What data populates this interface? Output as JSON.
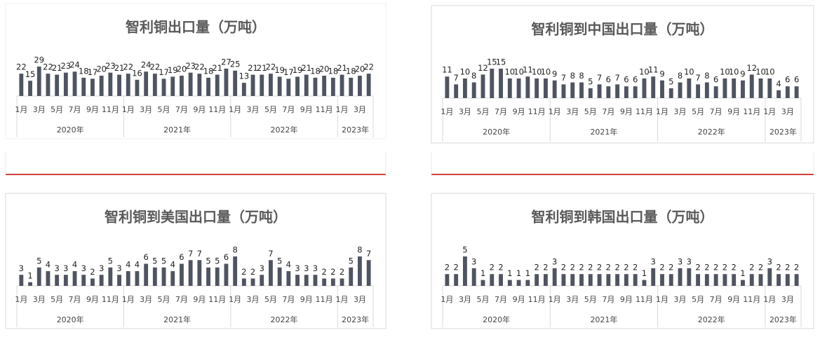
{
  "chart_data": [
    {
      "type": "bar",
      "title": "智利铜出口量（万吨）",
      "color": "#4f5461",
      "categories": [
        "1月",
        null,
        "3月",
        null,
        "5月",
        null,
        "7月",
        null,
        "9月",
        null,
        "11月",
        null,
        "1月",
        null,
        "3月",
        null,
        "5月",
        null,
        "7月",
        null,
        "9月",
        null,
        "11月",
        null,
        "1月",
        null,
        "3月",
        null,
        "5月",
        null,
        "7月",
        null,
        "9月",
        null,
        "11月",
        null,
        "1月",
        null,
        "3月",
        null
      ],
      "groups": [
        "2020年",
        "2021年",
        "2022年",
        "2023年"
      ],
      "values": [
        22,
        15,
        29,
        22,
        21,
        23,
        24,
        18,
        17,
        20,
        23,
        21,
        22,
        16,
        24,
        22,
        17,
        19,
        20,
        23,
        22,
        18,
        21,
        27,
        25,
        13,
        21,
        21,
        22,
        19,
        17,
        19,
        21,
        18,
        20,
        18,
        21,
        18,
        20,
        22
      ]
    },
    {
      "type": "bar",
      "title": "智利铜到中国出口量（万吨）",
      "color": "#4f5461",
      "categories": [
        "1月",
        null,
        "3月",
        null,
        "5月",
        null,
        "7月",
        null,
        "9月",
        null,
        "11月",
        null,
        "1月",
        null,
        "3月",
        null,
        "5月",
        null,
        "7月",
        null,
        "9月",
        null,
        "11月",
        null,
        "1月",
        null,
        "3月",
        null,
        "5月",
        null,
        "7月",
        null,
        "9月",
        null,
        "11月",
        null,
        "1月",
        null,
        "3月",
        null
      ],
      "groups": [
        "2020年",
        "2021年",
        "2022年",
        "2023年"
      ],
      "values": [
        11,
        7,
        10,
        8,
        12,
        15,
        15,
        10,
        10,
        11,
        10,
        10,
        9,
        7,
        8,
        8,
        5,
        7,
        6,
        7,
        6,
        6,
        10,
        11,
        9,
        5,
        8,
        10,
        7,
        8,
        6,
        10,
        10,
        9,
        12,
        10,
        10,
        4,
        6,
        6
      ]
    },
    {
      "type": "bar",
      "title": "智利铜到美国出口量（万吨）",
      "color": "#4f5461",
      "categories": [
        "1月",
        null,
        "3月",
        null,
        "5月",
        null,
        "7月",
        null,
        "9月",
        null,
        "11月",
        null,
        "1月",
        null,
        "3月",
        null,
        "5月",
        null,
        "7月",
        null,
        "9月",
        null,
        "11月",
        null,
        "1月",
        null,
        "3月",
        null,
        "5月",
        null,
        "7月",
        null,
        "9月",
        null,
        "11月",
        null,
        "1月",
        null,
        "3月",
        null
      ],
      "groups": [
        "2020年",
        "2021年",
        "2022年",
        "2023年"
      ],
      "values": [
        3,
        1,
        5,
        4,
        3,
        3,
        4,
        3,
        2,
        3,
        5,
        3,
        4,
        4,
        6,
        5,
        5,
        4,
        6,
        7,
        7,
        5,
        5,
        6,
        8,
        2,
        2,
        3,
        7,
        5,
        4,
        3,
        3,
        3,
        2,
        2,
        2,
        5,
        8,
        7
      ]
    },
    {
      "type": "bar",
      "title": "智利铜到韩国出口量（万吨）",
      "color": "#4f5461",
      "categories": [
        "1月",
        null,
        "3月",
        null,
        "5月",
        null,
        "7月",
        null,
        "9月",
        null,
        "11月",
        null,
        "1月",
        null,
        "3月",
        null,
        "5月",
        null,
        "7月",
        null,
        "9月",
        null,
        "11月",
        null,
        "1月",
        null,
        "3月",
        null,
        "5月",
        null,
        "7月",
        null,
        "9月",
        null,
        "11月",
        null,
        "1月",
        null,
        "3月",
        null
      ],
      "groups": [
        "2020年",
        "2021年",
        "2022年",
        "2023年"
      ],
      "values": [
        2,
        2,
        5,
        3,
        1,
        2,
        2,
        1,
        1,
        1,
        2,
        2,
        3,
        2,
        2,
        2,
        2,
        2,
        2,
        2,
        2,
        2,
        1,
        3,
        2,
        2,
        3,
        3,
        2,
        2,
        2,
        2,
        2,
        1,
        2,
        2,
        3,
        2,
        2,
        2
      ]
    }
  ]
}
